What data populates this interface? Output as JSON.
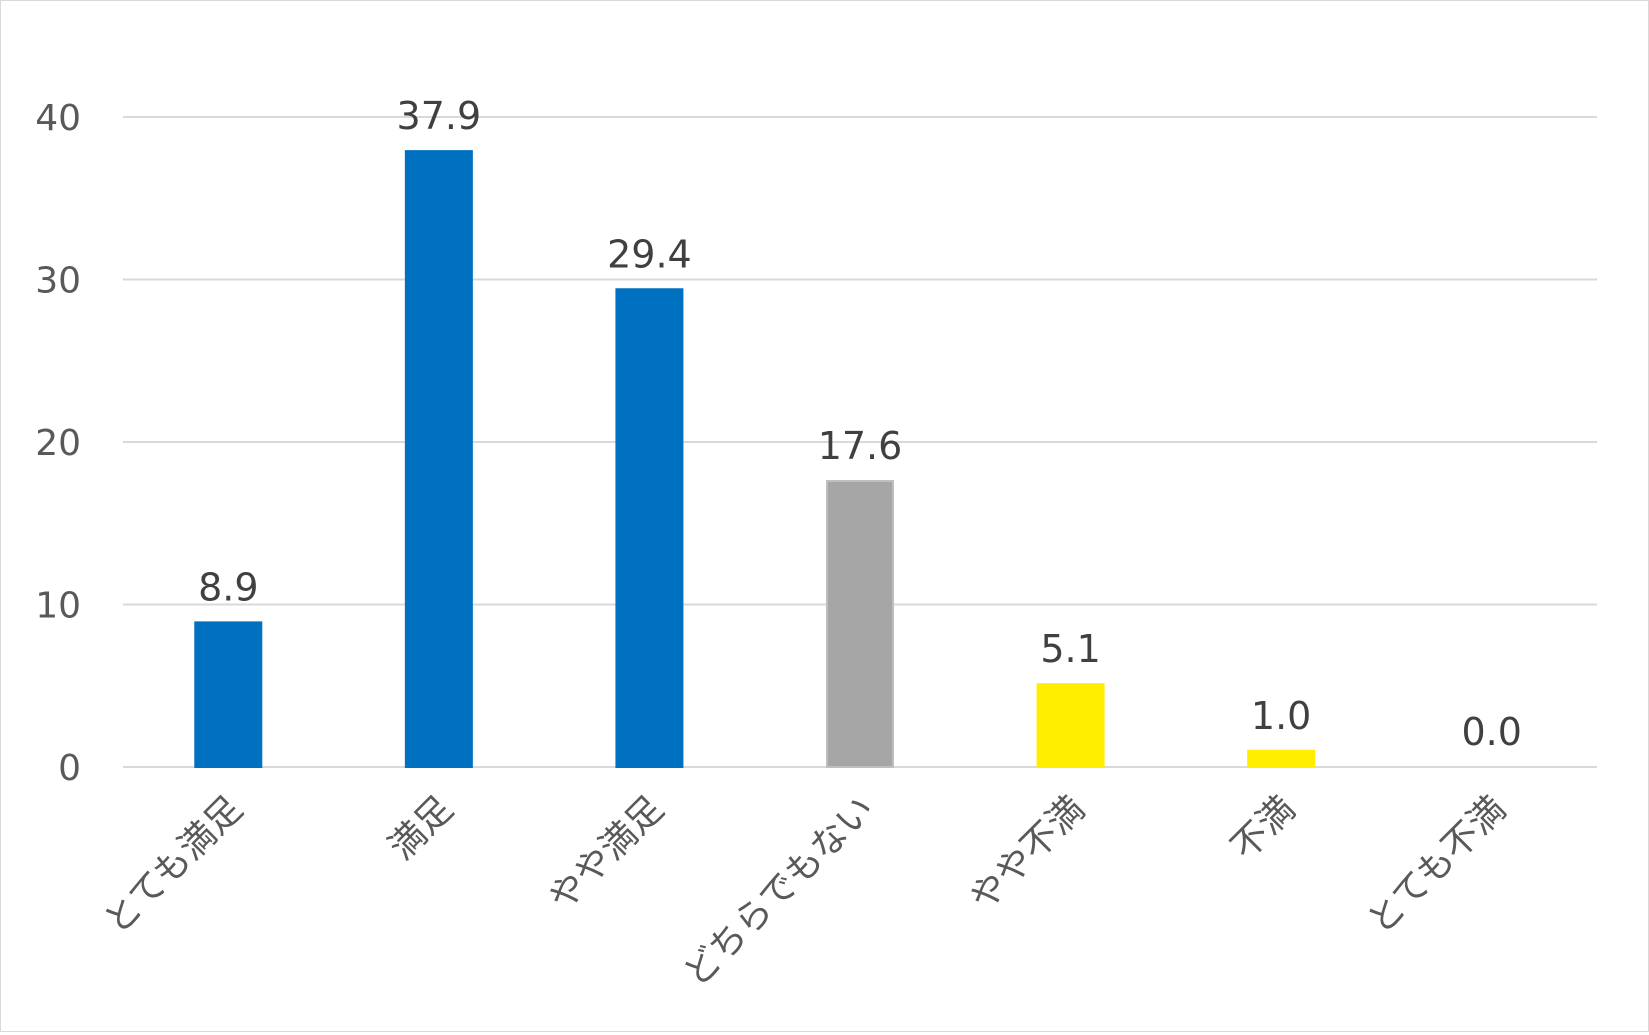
{
  "chart_data": {
    "type": "bar",
    "title": "",
    "xlabel": "",
    "ylabel": "",
    "categories": [
      "とても満足",
      "満足",
      "やや満足",
      "どちらでもない",
      "やや不満",
      "不満",
      "とても不満"
    ],
    "values": [
      8.9,
      37.9,
      29.4,
      17.6,
      5.1,
      1.0,
      0.0
    ],
    "value_labels": [
      "8.9",
      "37.9",
      "29.4",
      "17.6",
      "5.1",
      "1.0",
      "0.0"
    ],
    "colors": [
      "#0070c0",
      "#0070c0",
      "#0070c0",
      "#a6a6a6",
      "#ffee00",
      "#ffee00",
      "#ffee00"
    ],
    "ylim": [
      0,
      40
    ],
    "yticks": [
      0,
      10,
      20,
      30,
      40
    ],
    "grid": true,
    "legend": "none"
  }
}
